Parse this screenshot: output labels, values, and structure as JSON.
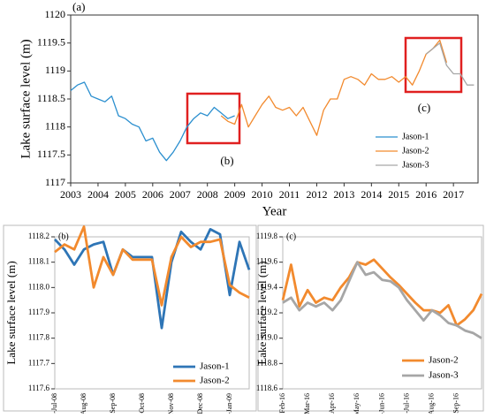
{
  "chart_data": [
    {
      "type": "line",
      "label": "(a)",
      "xlabel": "Year",
      "ylabel": "Lake surface level (m)",
      "annotations": [
        "(b)",
        "(c)"
      ],
      "xlim": [
        2003,
        2017.9
      ],
      "xticks": [
        2003,
        2004,
        2005,
        2006,
        2007,
        2008,
        2009,
        2010,
        2011,
        2012,
        2013,
        2014,
        2015,
        2016,
        2017
      ],
      "ylim": [
        1117,
        1120
      ],
      "yticks": [
        1117,
        1117.5,
        1118,
        1118.5,
        1119,
        1119.5,
        1120
      ],
      "legend": "lower right",
      "series": [
        {
          "name": "Jason-1",
          "color": "#2b8fcf",
          "x": [
            2003,
            2003.25,
            2003.5,
            2003.75,
            2004,
            2004.25,
            2004.5,
            2004.75,
            2005,
            2005.25,
            2005.5,
            2005.75,
            2006,
            2006.25,
            2006.5,
            2006.75,
            2007,
            2007.25,
            2007.5,
            2007.75,
            2008,
            2008.25,
            2008.5,
            2008.75,
            2009
          ],
          "values": [
            1118.65,
            1118.75,
            1118.8,
            1118.55,
            1118.5,
            1118.45,
            1118.55,
            1118.2,
            1118.15,
            1118.05,
            1118.0,
            1117.75,
            1117.8,
            1117.55,
            1117.4,
            1117.55,
            1117.75,
            1118.0,
            1118.15,
            1118.25,
            1118.2,
            1118.35,
            1118.25,
            1118.15,
            1118.2
          ]
        },
        {
          "name": "Jason-2",
          "color": "#f28a2e",
          "x": [
            2008.5,
            2008.75,
            2009,
            2009.25,
            2009.5,
            2009.75,
            2010,
            2010.25,
            2010.5,
            2010.75,
            2011,
            2011.25,
            2011.5,
            2011.75,
            2012,
            2012.25,
            2012.5,
            2012.75,
            2013,
            2013.25,
            2013.5,
            2013.75,
            2014,
            2014.25,
            2014.5,
            2014.75,
            2015,
            2015.25,
            2015.5,
            2015.75,
            2016,
            2016.25,
            2016.5,
            2016.75
          ],
          "values": [
            1118.2,
            1118.1,
            1118.05,
            1118.4,
            1118.0,
            1118.2,
            1118.4,
            1118.55,
            1118.35,
            1118.3,
            1118.35,
            1118.2,
            1118.35,
            1118.1,
            1117.85,
            1118.3,
            1118.5,
            1118.5,
            1118.85,
            1118.9,
            1118.85,
            1118.75,
            1118.95,
            1118.85,
            1118.85,
            1118.9,
            1118.8,
            1118.9,
            1118.75,
            1119.0,
            1119.3,
            1119.4,
            1119.55,
            1119.15
          ]
        },
        {
          "name": "Jason-3",
          "color": "#a6a6a6",
          "x": [
            2016,
            2016.25,
            2016.5,
            2016.75,
            2017,
            2017.25,
            2017.5,
            2017.75
          ],
          "values": [
            1119.3,
            1119.4,
            1119.5,
            1119.1,
            1118.95,
            1118.95,
            1118.75,
            1118.75
          ]
        }
      ]
    },
    {
      "type": "line",
      "label": "(b)",
      "ylabel": "Lake surface level (m)",
      "categories": [
        "6-Jul-08",
        null,
        null,
        "6-Aug-08",
        null,
        null,
        "6-Sep-08",
        null,
        null,
        "6-Oct-08",
        null,
        null,
        "6-Nov-08",
        null,
        null,
        "6-Dec-08",
        null,
        null,
        "6-Jan-09",
        null,
        null
      ],
      "ylim": [
        1117.6,
        1118.2
      ],
      "yticks": [
        1117.6,
        1117.7,
        1117.8,
        1117.9,
        {
          "value": 1118,
          "label": "1118.0"
        },
        1118.1,
        1118.2
      ],
      "legend": "lower right",
      "series": [
        {
          "name": "Jason-1",
          "color": "#2e75b6",
          "values": [
            1118.19,
            1118.15,
            1118.09,
            1118.15,
            1118.17,
            1118.18,
            1118.05,
            1118.15,
            1118.12,
            1118.12,
            1118.12,
            1117.84,
            1118.1,
            1118.22,
            1118.18,
            1118.15,
            1118.23,
            1118.21,
            1117.97,
            1118.18,
            1118.07
          ]
        },
        {
          "name": "Jason-2",
          "color": "#f28a2e",
          "values": [
            1118.14,
            1118.17,
            1118.15,
            1118.24,
            1118.0,
            1118.12,
            1118.05,
            1118.15,
            1118.11,
            1118.11,
            1118.11,
            1117.93,
            1118.12,
            1118.2,
            1118.16,
            1118.18,
            1118.18,
            1118.19,
            1118.01,
            1117.98,
            1117.96
          ]
        }
      ]
    },
    {
      "type": "line",
      "label": "(c)",
      "ylabel": "Lake surface level (m)",
      "categories": [
        "12-Feb-16",
        null,
        null,
        "12-Mar-16",
        null,
        null,
        "12-Apr-16",
        null,
        null,
        "12-May-16",
        null,
        null,
        "12-Jun-16",
        null,
        null,
        "12-Jul-16",
        null,
        null,
        "12-Aug-16",
        null,
        null,
        "12-Sep-16",
        null,
        null,
        null
      ],
      "ylim": [
        1118.6,
        1119.8
      ],
      "yticks": [
        1118.6,
        1118.8,
        {
          "value": 1119,
          "label": "1119.0"
        },
        1119.2,
        1119.4,
        1119.6,
        1119.8
      ],
      "legend": "lower right",
      "series": [
        {
          "name": "Jason-2",
          "color": "#f28a2e",
          "values": [
            1119.3,
            1119.58,
            1119.25,
            1119.38,
            1119.28,
            1119.32,
            1119.3,
            1119.4,
            1119.48,
            1119.6,
            1119.58,
            1119.62,
            1119.55,
            1119.48,
            1119.42,
            1119.35,
            1119.28,
            1119.22,
            1119.22,
            1119.2,
            1119.26,
            1119.1,
            1119.15,
            1119.22,
            1119.35
          ]
        },
        {
          "name": "Jason-3",
          "color": "#a6a6a6",
          "values": [
            1119.28,
            1119.32,
            1119.22,
            1119.28,
            1119.25,
            1119.28,
            1119.22,
            1119.3,
            1119.45,
            1119.6,
            1119.5,
            1119.52,
            1119.46,
            1119.45,
            1119.4,
            1119.3,
            1119.22,
            1119.14,
            1119.22,
            1119.18,
            1119.12,
            1119.1,
            1119.06,
            1119.04,
            1119.0
          ]
        }
      ]
    }
  ]
}
